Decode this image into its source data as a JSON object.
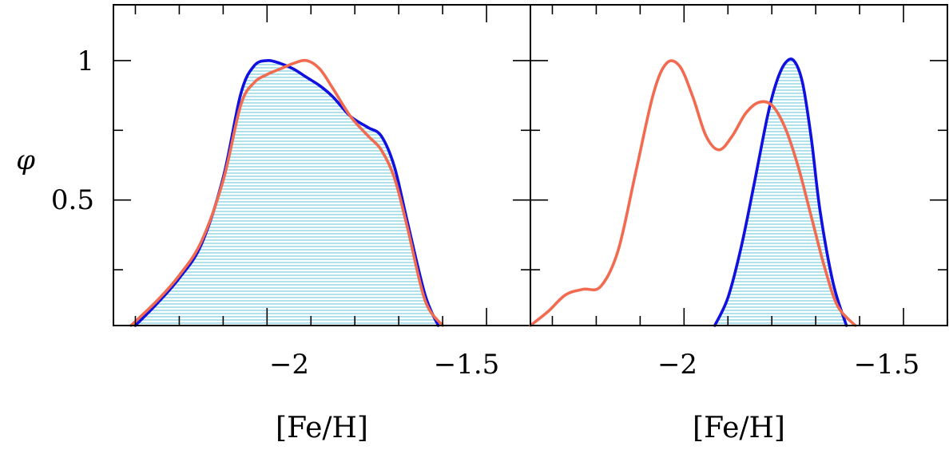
{
  "chart_data": [
    {
      "type": "line",
      "panel": "left",
      "xlabel": "[Fe/H]",
      "ylabel": "φ",
      "xlim": [
        -2.35,
        -1.4
      ],
      "ylim": [
        0.05,
        1.2
      ],
      "xticks": [
        -2,
        -1.5
      ],
      "xtick_labels": [
        "−2",
        "−1.5"
      ],
      "yticks": [
        0.5,
        1
      ],
      "ytick_labels": [
        "0.5",
        "1"
      ],
      "grid": false,
      "series": [
        {
          "color": "#1010e0",
          "filled": true,
          "fill_color": "#7ccfe0",
          "x": [
            -2.3,
            -2.25,
            -2.2,
            -2.15,
            -2.1,
            -2.06,
            -2.03,
            -2.0,
            -1.97,
            -1.94,
            -1.91,
            -1.88,
            -1.85,
            -1.81,
            -1.77,
            -1.74,
            -1.71,
            -1.68,
            -1.64,
            -1.61
          ],
          "y": [
            0.05,
            0.13,
            0.22,
            0.34,
            0.58,
            0.88,
            0.98,
            1.0,
            0.99,
            0.97,
            0.94,
            0.91,
            0.87,
            0.8,
            0.76,
            0.73,
            0.62,
            0.42,
            0.16,
            0.05
          ]
        },
        {
          "color": "#f26a50",
          "filled": false,
          "x": [
            -2.31,
            -2.25,
            -2.2,
            -2.15,
            -2.1,
            -2.06,
            -2.03,
            -2.0,
            -1.97,
            -1.94,
            -1.91,
            -1.88,
            -1.85,
            -1.81,
            -1.77,
            -1.74,
            -1.71,
            -1.68,
            -1.64,
            -1.6
          ],
          "y": [
            0.05,
            0.14,
            0.23,
            0.35,
            0.57,
            0.84,
            0.92,
            0.95,
            0.97,
            0.99,
            1.0,
            0.97,
            0.9,
            0.8,
            0.73,
            0.68,
            0.58,
            0.4,
            0.14,
            0.05
          ]
        }
      ]
    },
    {
      "type": "line",
      "panel": "right",
      "xlabel": "[Fe/H]",
      "xlim": [
        -2.35,
        -1.4
      ],
      "ylim": [
        0.05,
        1.2
      ],
      "xticks": [
        -2,
        -1.5
      ],
      "xtick_labels": [
        "−2",
        "−1.5"
      ],
      "grid": false,
      "series": [
        {
          "color": "#1010e0",
          "filled": true,
          "fill_color": "#7ccfe0",
          "x": [
            -1.93,
            -1.9,
            -1.87,
            -1.84,
            -1.81,
            -1.79,
            -1.77,
            -1.75,
            -1.73,
            -1.71,
            -1.69,
            -1.66,
            -1.63
          ],
          "y": [
            0.05,
            0.15,
            0.33,
            0.56,
            0.8,
            0.92,
            0.99,
            1.0,
            0.92,
            0.72,
            0.46,
            0.2,
            0.05
          ]
        },
        {
          "color": "#f26a50",
          "filled": false,
          "x": [
            -2.35,
            -2.31,
            -2.27,
            -2.23,
            -2.19,
            -2.15,
            -2.11,
            -2.07,
            -2.04,
            -2.01,
            -1.98,
            -1.95,
            -1.92,
            -1.89,
            -1.86,
            -1.83,
            -1.8,
            -1.77,
            -1.74,
            -1.71,
            -1.68,
            -1.65,
            -1.61
          ],
          "y": [
            0.05,
            0.1,
            0.16,
            0.18,
            0.19,
            0.32,
            0.6,
            0.88,
            0.99,
            0.98,
            0.87,
            0.73,
            0.68,
            0.73,
            0.81,
            0.85,
            0.84,
            0.76,
            0.62,
            0.44,
            0.26,
            0.12,
            0.05
          ]
        }
      ]
    }
  ]
}
